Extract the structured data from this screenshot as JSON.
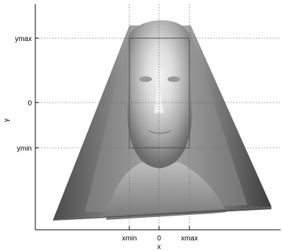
{
  "figure": {
    "x_axis_label": "x",
    "y_axis_label": "y",
    "x_ticks": [
      "xmin",
      "0",
      "xmax"
    ],
    "y_ticks": [
      "ymax",
      "0",
      "ymin"
    ],
    "grid": "dotted",
    "image_description_icon": "face-surface-image"
  }
}
